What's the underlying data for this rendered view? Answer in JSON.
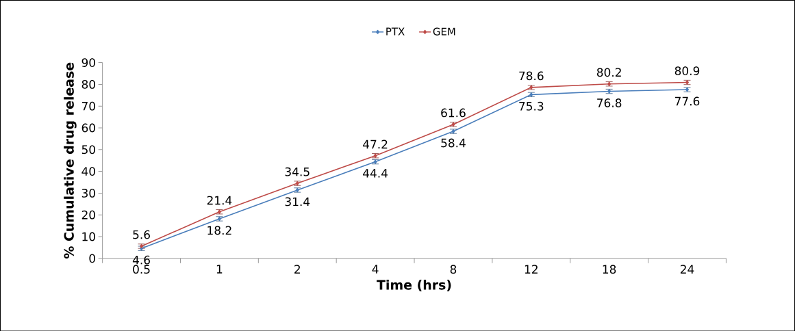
{
  "chart_data": {
    "type": "line",
    "xlabel": "Time  (hrs)",
    "ylabel": "% Cumulative drug release",
    "categories": [
      "0.5",
      "1",
      "2",
      "4",
      "8",
      "12",
      "18",
      "24"
    ],
    "series": [
      {
        "name": "PTX",
        "color": "#4a7ebb",
        "values": [
          4.6,
          18.2,
          31.4,
          44.4,
          58.4,
          75.3,
          76.8,
          77.6
        ],
        "errors": [
          1,
          1,
          1,
          1,
          1,
          1,
          1,
          1
        ]
      },
      {
        "name": "GEM",
        "color": "#be4b48",
        "values": [
          5.6,
          21.4,
          34.5,
          47.2,
          61.6,
          78.6,
          80.2,
          80.9
        ],
        "errors": [
          1,
          1,
          1,
          1,
          1,
          1,
          1,
          1
        ]
      }
    ],
    "ylim": [
      0,
      90
    ],
    "yticks": [
      0,
      10,
      20,
      30,
      40,
      50,
      60,
      70,
      80,
      90
    ],
    "grid": false,
    "legend": "top",
    "marker": "diamond",
    "line_style": "solid",
    "data_labels": true
  }
}
